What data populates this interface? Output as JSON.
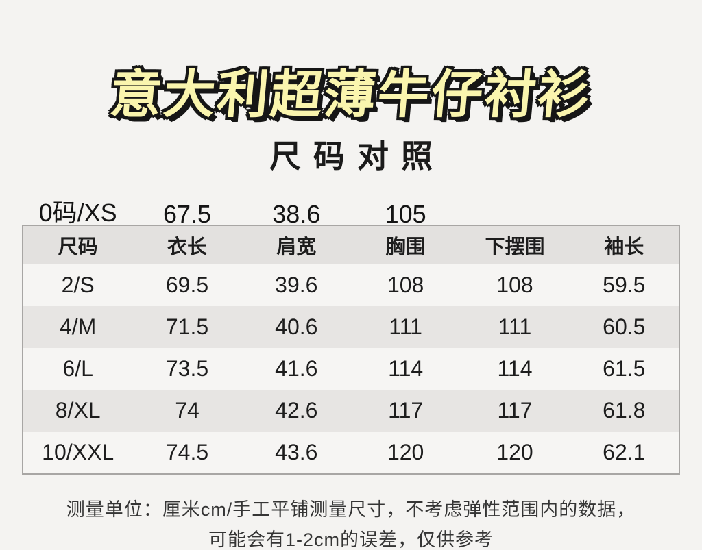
{
  "page": {
    "background_color": "#f4f3f1",
    "title": "意大利超薄牛仔衬衫",
    "title_color": "#faf5ae",
    "title_outline_color": "#161616",
    "subtitle": "尺码对照"
  },
  "chart_data": {
    "type": "table",
    "title": "尺码对照",
    "columns": [
      "尺码",
      "衣长",
      "肩宽",
      "胸围",
      "下摆围",
      "袖长"
    ],
    "floating_row": {
      "size": "0码/XS",
      "values": [
        "67.5",
        "38.6",
        "105",
        "",
        ""
      ]
    },
    "rows": [
      {
        "size": "2/S",
        "values": [
          "69.5",
          "39.6",
          "108",
          "108",
          "59.5"
        ]
      },
      {
        "size": "4/M",
        "values": [
          "71.5",
          "40.6",
          "111",
          "111",
          "60.5"
        ]
      },
      {
        "size": "6/L",
        "values": [
          "73.5",
          "41.6",
          "114",
          "114",
          "61.5"
        ]
      },
      {
        "size": "8/XL",
        "values": [
          "74",
          "42.6",
          "117",
          "117",
          "61.8"
        ]
      },
      {
        "size": "10/XXL",
        "values": [
          "74.5",
          "43.6",
          "120",
          "120",
          "62.1"
        ]
      }
    ],
    "header_bg": "#e3e1df",
    "stripe_bg": "#e7e5e3",
    "row_bg": "#f6f5f3",
    "border_color": "#a8a6a4"
  },
  "footer": {
    "line1": "测量单位：厘米cm/手工平铺测量尺寸，不考虑弹性范围内的数据，",
    "line2": "可能会有1-2cm的误差，仅供参考"
  }
}
